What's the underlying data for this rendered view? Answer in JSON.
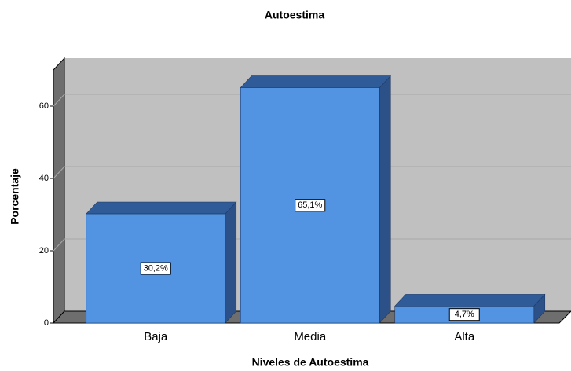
{
  "chart_data": {
    "type": "bar3d",
    "title": "Autoestima",
    "x_label": "Niveles de Autoestima",
    "y_label": "Porcentaje",
    "categories": [
      "Baja",
      "Media",
      "Alta"
    ],
    "values": [
      30.2,
      65.1,
      4.7
    ],
    "value_labels": [
      "30,2%",
      "65,1%",
      "4,7%"
    ],
    "color": "#5294e2",
    "ylim": [
      0,
      70
    ],
    "yticks": [
      0,
      20,
      40,
      60
    ],
    "grid": true
  }
}
